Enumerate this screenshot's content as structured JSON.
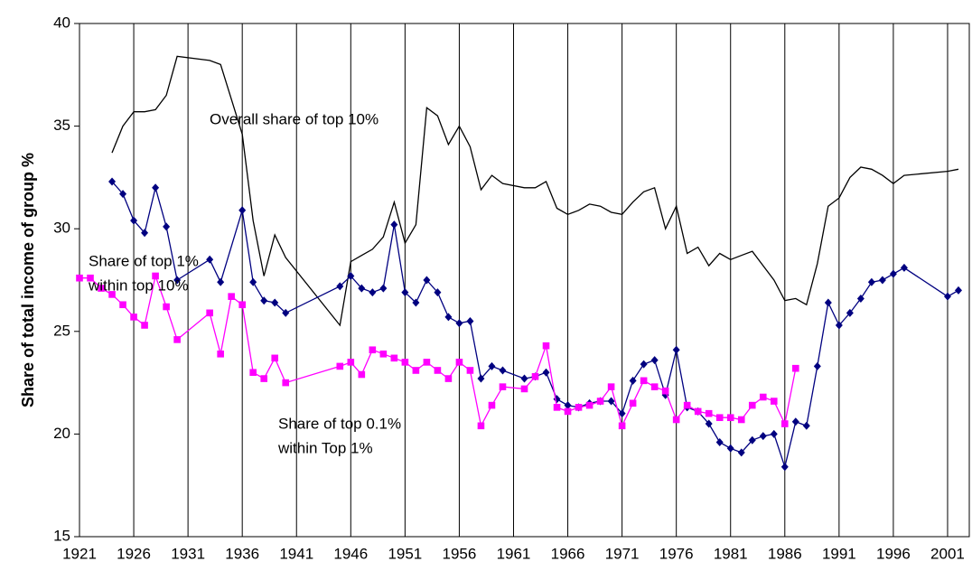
{
  "chart_data": {
    "type": "line",
    "y_label": "Share of total income of group %",
    "annotations": [
      [
        "Overall share of top 10%"
      ],
      [
        "Share of top 1%",
        "within top 10%"
      ],
      [
        "Share of top 0.1%",
        "within Top 1%"
      ]
    ],
    "xlim": [
      1921,
      2003
    ],
    "xticks": [
      1921,
      1926,
      1931,
      1936,
      1941,
      1946,
      1951,
      1956,
      1961,
      1966,
      1971,
      1976,
      1981,
      1986,
      1991,
      1996,
      2001
    ],
    "ylim": [
      15,
      40
    ],
    "yticks": [
      15,
      20,
      25,
      30,
      35,
      40
    ],
    "grid": true,
    "series": [
      {
        "name": "Overall share of top 10%",
        "color": "#000000",
        "marker": "none",
        "x": [
          1924,
          1925,
          1926,
          1927,
          1928,
          1929,
          1930,
          1933,
          1934,
          1936,
          1937,
          1938,
          1939,
          1940,
          1945,
          1946,
          1947,
          1948,
          1949,
          1950,
          1951,
          1952,
          1953,
          1954,
          1955,
          1956,
          1957,
          1958,
          1959,
          1960,
          1962,
          1963,
          1964,
          1965,
          1966,
          1967,
          1968,
          1969,
          1970,
          1971,
          1972,
          1973,
          1974,
          1975,
          1976,
          1977,
          1978,
          1979,
          1980,
          1981,
          1982,
          1983,
          1984,
          1985,
          1986,
          1987,
          1988,
          1989,
          1990,
          1991,
          1992,
          1993,
          1994,
          1995,
          1996,
          1997,
          2001,
          2002
        ],
        "values": [
          33.7,
          35.0,
          35.7,
          35.7,
          35.8,
          36.5,
          38.4,
          38.2,
          38.0,
          34.6,
          30.4,
          27.7,
          29.7,
          28.6,
          25.3,
          28.4,
          28.7,
          29.0,
          29.6,
          31.3,
          29.3,
          30.2,
          35.9,
          35.5,
          34.1,
          35.0,
          34.0,
          31.9,
          32.6,
          32.2,
          32.0,
          32.0,
          32.3,
          31.0,
          30.7,
          30.9,
          31.2,
          31.1,
          30.8,
          30.7,
          31.3,
          31.8,
          32.0,
          30.0,
          31.1,
          28.8,
          29.1,
          28.2,
          28.8,
          28.5,
          28.7,
          28.9,
          28.2,
          27.5,
          26.5,
          26.6,
          26.3,
          28.3,
          31.1,
          31.5,
          32.5,
          33.0,
          32.9,
          32.6,
          32.2,
          32.6,
          32.8,
          32.9
        ]
      },
      {
        "name": "Share of top 1% within top 10%",
        "color": "#000080",
        "marker": "diamond",
        "x": [
          1924,
          1925,
          1926,
          1927,
          1928,
          1929,
          1930,
          1933,
          1934,
          1936,
          1937,
          1938,
          1939,
          1940,
          1945,
          1946,
          1947,
          1948,
          1949,
          1950,
          1951,
          1952,
          1953,
          1954,
          1955,
          1956,
          1957,
          1958,
          1959,
          1960,
          1962,
          1963,
          1964,
          1965,
          1966,
          1967,
          1968,
          1969,
          1970,
          1971,
          1972,
          1973,
          1974,
          1975,
          1976,
          1977,
          1978,
          1979,
          1980,
          1981,
          1982,
          1983,
          1984,
          1985,
          1986,
          1987,
          1988,
          1989,
          1990,
          1991,
          1992,
          1993,
          1994,
          1995,
          1996,
          1997,
          2001,
          2002
        ],
        "values": [
          32.3,
          31.7,
          30.4,
          29.8,
          32.0,
          30.1,
          27.5,
          28.5,
          27.4,
          30.9,
          27.4,
          26.5,
          26.4,
          25.9,
          27.2,
          27.7,
          27.1,
          26.9,
          27.1,
          30.2,
          26.9,
          26.4,
          27.5,
          26.9,
          25.7,
          25.4,
          25.5,
          22.7,
          23.3,
          23.1,
          22.7,
          22.8,
          23.0,
          21.7,
          21.4,
          21.3,
          21.5,
          21.6,
          21.6,
          21.0,
          22.6,
          23.4,
          23.6,
          21.9,
          24.1,
          21.3,
          21.1,
          20.5,
          19.6,
          19.3,
          19.1,
          19.7,
          19.9,
          20.0,
          18.4,
          20.6,
          20.4,
          23.3,
          26.4,
          25.3,
          25.9,
          26.6,
          27.4,
          27.5,
          27.8,
          28.1,
          26.7,
          27.0
        ]
      },
      {
        "name": "Share of top 0.1% within Top 1%",
        "color": "#ff00ff",
        "marker": "square",
        "x": [
          1921,
          1922,
          1923,
          1924,
          1925,
          1926,
          1927,
          1928,
          1929,
          1930,
          1933,
          1934,
          1935,
          1936,
          1937,
          1938,
          1939,
          1940,
          1945,
          1946,
          1947,
          1948,
          1949,
          1950,
          1951,
          1952,
          1953,
          1954,
          1955,
          1956,
          1957,
          1958,
          1959,
          1960,
          1962,
          1963,
          1964,
          1965,
          1966,
          1967,
          1968,
          1969,
          1970,
          1971,
          1972,
          1973,
          1974,
          1975,
          1976,
          1977,
          1978,
          1979,
          1980,
          1981,
          1982,
          1983,
          1984,
          1985,
          1986,
          1987
        ],
        "values": [
          27.6,
          27.6,
          27.1,
          26.8,
          26.3,
          25.7,
          25.3,
          27.7,
          26.2,
          24.6,
          25.9,
          23.9,
          26.7,
          26.3,
          23.0,
          22.7,
          23.7,
          22.5,
          23.3,
          23.5,
          22.9,
          24.1,
          23.9,
          23.7,
          23.5,
          23.1,
          23.5,
          23.1,
          22.7,
          23.5,
          23.1,
          20.4,
          21.4,
          22.3,
          22.2,
          22.8,
          24.3,
          21.3,
          21.1,
          21.3,
          21.4,
          21.6,
          22.3,
          20.4,
          21.5,
          22.6,
          22.3,
          22.1,
          20.7,
          21.4,
          21.1,
          21.0,
          20.8,
          20.8,
          20.7,
          21.4,
          21.8,
          21.6,
          20.5,
          23.2
        ]
      }
    ]
  }
}
